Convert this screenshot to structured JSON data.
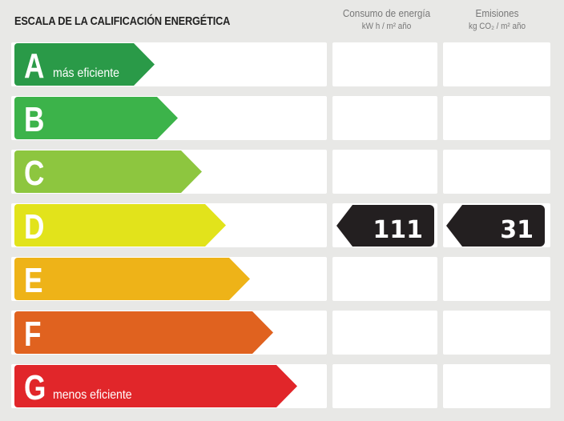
{
  "title": "ESCALA DE LA CALIFICACIÓN ENERGÉTICA",
  "columns": [
    {
      "label": "Consumo de energía",
      "unit": "kW h / m² año"
    },
    {
      "label": "Emisiones",
      "unit": "kg CO₂ / m² año"
    }
  ],
  "ratings": [
    {
      "letter": "A",
      "note": "más eficiente",
      "color": "#2a9a48"
    },
    {
      "letter": "B",
      "note": "",
      "color": "#3cb34a"
    },
    {
      "letter": "C",
      "note": "",
      "color": "#8dc63f"
    },
    {
      "letter": "D",
      "note": "",
      "color": "#e2e31b"
    },
    {
      "letter": "E",
      "note": "",
      "color": "#eeb318"
    },
    {
      "letter": "F",
      "note": "",
      "color": "#e0621f"
    },
    {
      "letter": "G",
      "note": "menos eficiente",
      "color": "#e1262a"
    }
  ],
  "result": {
    "rating": "D",
    "consumption": "111",
    "emissions": "31"
  }
}
